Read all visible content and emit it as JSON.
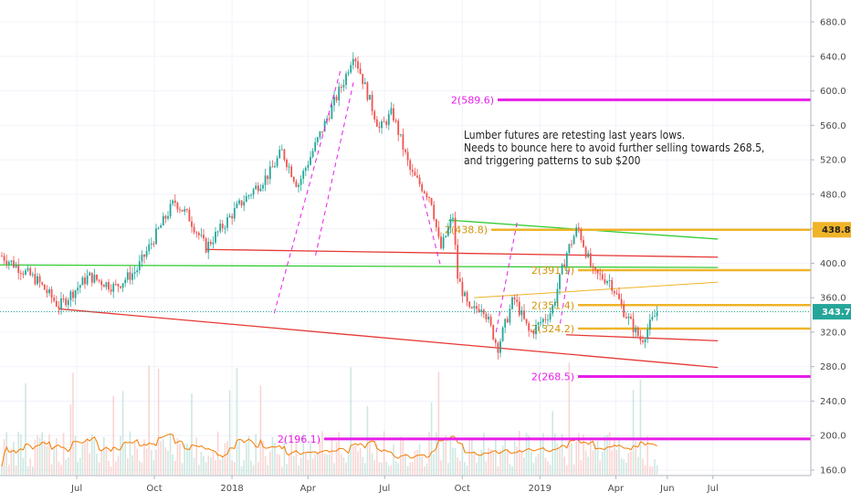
{
  "chart_data": {
    "type": "candlestick",
    "title": "",
    "y_axis": {
      "position": "right",
      "ylim": [
        150,
        690
      ],
      "ticks": [
        160,
        200,
        240,
        280,
        320,
        360,
        400,
        440,
        480,
        520,
        560,
        600,
        640,
        680
      ],
      "tick_labels": [
        "160.0",
        "200.0",
        "240.0",
        "280.0",
        "320.0",
        "360.0",
        "400.0",
        "440.0",
        "480.0",
        "520.0",
        "560.0",
        "600.0",
        "640.0",
        "680.0"
      ]
    },
    "x_axis": {
      "tick_labels": [
        "Jul",
        "Oct",
        "2018",
        "Apr",
        "Jul",
        "Oct",
        "2019",
        "Apr",
        "Jun",
        "Jul"
      ]
    },
    "price_path": [
      {
        "t": "2017-04-01",
        "price": 410
      },
      {
        "t": "2017-05-15",
        "price": 380
      },
      {
        "t": "2017-06-10",
        "price": 350
      },
      {
        "t": "2017-07-15",
        "price": 385
      },
      {
        "t": "2017-08-15",
        "price": 372
      },
      {
        "t": "2017-09-10",
        "price": 392
      },
      {
        "t": "2017-10-01",
        "price": 430
      },
      {
        "t": "2017-10-25",
        "price": 472
      },
      {
        "t": "2017-11-10",
        "price": 455
      },
      {
        "t": "2017-12-01",
        "price": 418
      },
      {
        "t": "2018-01-10",
        "price": 468
      },
      {
        "t": "2018-02-15",
        "price": 505
      },
      {
        "t": "2018-03-01",
        "price": 530
      },
      {
        "t": "2018-03-20",
        "price": 490
      },
      {
        "t": "2018-04-20",
        "price": 560
      },
      {
        "t": "2018-05-15",
        "price": 615
      },
      {
        "t": "2018-05-25",
        "price": 645
      },
      {
        "t": "2018-06-10",
        "price": 598
      },
      {
        "t": "2018-06-25",
        "price": 555
      },
      {
        "t": "2018-07-10",
        "price": 575
      },
      {
        "t": "2018-08-01",
        "price": 505
      },
      {
        "t": "2018-08-25",
        "price": 475
      },
      {
        "t": "2018-09-05",
        "price": 415
      },
      {
        "t": "2018-09-20",
        "price": 455
      },
      {
        "t": "2018-09-25",
        "price": 385
      },
      {
        "t": "2018-10-10",
        "price": 342
      },
      {
        "t": "2018-10-25",
        "price": 352
      },
      {
        "t": "2018-11-12",
        "price": 302
      },
      {
        "t": "2018-12-01",
        "price": 360
      },
      {
        "t": "2018-12-20",
        "price": 318
      },
      {
        "t": "2019-01-15",
        "price": 345
      },
      {
        "t": "2019-02-01",
        "price": 410
      },
      {
        "t": "2019-02-15",
        "price": 442
      },
      {
        "t": "2019-03-05",
        "price": 388
      },
      {
        "t": "2019-03-25",
        "price": 380
      },
      {
        "t": "2019-04-10",
        "price": 345
      },
      {
        "t": "2019-05-01",
        "price": 310
      },
      {
        "t": "2019-05-20",
        "price": 343.7
      }
    ],
    "current_price": {
      "value": 343.7,
      "label": "343.7",
      "color": "#26a69a"
    },
    "volume_sma_color": "#f57c00",
    "levels": [
      {
        "name": "2(589.6)",
        "value": 589.6,
        "label": "2(589.6)",
        "color": "#e81ee8"
      },
      {
        "name": "2(438.8)",
        "value": 438.8,
        "label": "2(438.8)",
        "color": "#f0b429",
        "badge": "438.8"
      },
      {
        "name": "2(391.9)",
        "value": 391.9,
        "label": "2(391.9)",
        "color": "#f0b429"
      },
      {
        "name": "2(351.4)",
        "value": 351.4,
        "label": "2(351.4)",
        "color": "#f0b429"
      },
      {
        "name": "2(324.2)",
        "value": 324.2,
        "label": "2(324.2)",
        "color": "#f0b429"
      },
      {
        "name": "2(268.5)",
        "value": 268.5,
        "label": "2(268.5)",
        "color": "#e81ee8"
      },
      {
        "name": "2(196.1)",
        "value": 196.1,
        "label": "2(196.1)",
        "color": "#e81ee8"
      }
    ],
    "trendlines": [
      {
        "name": "green-upper",
        "color": "#33cc33",
        "from": {
          "t": "2018-09-15",
          "price": 450
        },
        "to": {
          "t": "2019-07-31",
          "price": 428
        }
      },
      {
        "name": "green-horizontal",
        "color": "#33cc33",
        "from": {
          "t": "2017-04-01",
          "price": 398
        },
        "to": {
          "t": "2019-07-31",
          "price": 395
        }
      },
      {
        "name": "red-middle",
        "color": "#e53935",
        "from": {
          "t": "2017-12-01",
          "price": 416
        },
        "to": {
          "t": "2019-07-31",
          "price": 407
        }
      },
      {
        "name": "red-lower",
        "color": "#e53935",
        "from": {
          "t": "2017-06-10",
          "price": 347
        },
        "to": {
          "t": "2019-07-31",
          "price": 279
        }
      },
      {
        "name": "red-short",
        "color": "#e53935",
        "from": {
          "t": "2019-02-01",
          "price": 317
        },
        "to": {
          "t": "2019-07-31",
          "price": 310
        }
      },
      {
        "name": "orange-rising",
        "color": "#f0b429",
        "from": {
          "t": "2018-10-15",
          "price": 360
        },
        "to": {
          "t": "2019-07-31",
          "price": 378
        }
      }
    ],
    "annotation": {
      "lines": [
        "Lumber futures are retesting last years lows.",
        "Needs to bounce here to avoid further selling towards 268.5,",
        "and triggering patterns to sub $200"
      ]
    }
  }
}
